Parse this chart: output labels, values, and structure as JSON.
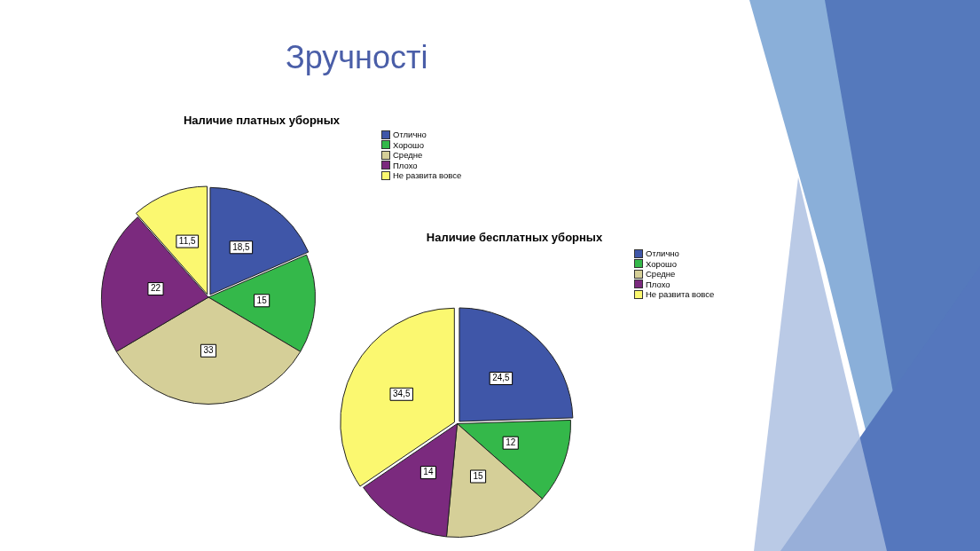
{
  "chart_data": [
    {
      "type": "other",
      "title": "Зручності"
    },
    {
      "type": "pie",
      "title": "Наличие платных уборных",
      "categories": [
        "Отлично",
        "Хорошо",
        "Средне",
        "Плохо",
        "Не развита вовсе"
      ],
      "values": [
        18.5,
        15,
        33,
        22,
        11.5
      ],
      "colors": [
        "#3f56a8",
        "#34b84a",
        "#d5cf98",
        "#7b2a7e",
        "#fbf870"
      ],
      "value_labels": [
        "18,5",
        "15",
        "33",
        "22",
        "11,5"
      ],
      "legend": "top right"
    },
    {
      "type": "pie",
      "title": "Наличие бесплатных уборных",
      "categories": [
        "Отлично",
        "Хорошо",
        "Средне",
        "Плохо",
        "Не развита вовсе"
      ],
      "values": [
        24.5,
        12,
        15,
        14,
        34.5
      ],
      "colors": [
        "#3f56a8",
        "#34b84a",
        "#d5cf98",
        "#7b2a7e",
        "#fbf870"
      ],
      "value_labels": [
        "24,5",
        "12",
        "15",
        "14",
        "34,5"
      ],
      "legend": "top right"
    }
  ]
}
